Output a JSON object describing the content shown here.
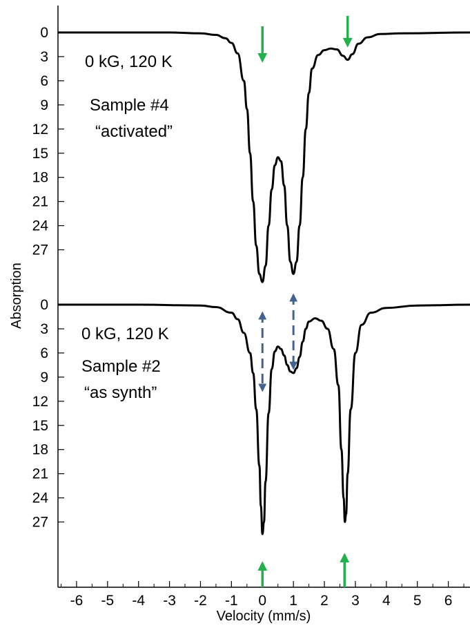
{
  "chart_data": {
    "type": "line",
    "xlabel": "Velocity (mm/s)",
    "ylabel": "Absorption",
    "xlim": [
      -6.6,
      6.7
    ],
    "x_ticks": [
      -6,
      -5,
      -4,
      -3,
      -2,
      -1,
      0,
      1,
      2,
      3,
      4,
      5,
      6
    ],
    "upper_panel_y_ticks": [
      0,
      3,
      6,
      9,
      12,
      15,
      18,
      21,
      24,
      27
    ],
    "lower_panel_y_ticks": [
      0,
      3,
      6,
      9,
      12,
      15,
      18,
      21,
      24,
      27
    ],
    "grid": false,
    "series": [
      {
        "panel": "upper",
        "annotation_lines": [
          "0 kG, 120 K",
          "Sample #4",
          "“activated”"
        ],
        "color": "#000000",
        "points": [
          [
            -6.6,
            0.0
          ],
          [
            -5.0,
            0.0
          ],
          [
            -3.0,
            0.0
          ],
          [
            -2.0,
            0.1
          ],
          [
            -1.5,
            0.3
          ],
          [
            -1.2,
            0.7
          ],
          [
            -1.0,
            1.3
          ],
          [
            -0.8,
            2.6
          ],
          [
            -0.6,
            6.0
          ],
          [
            -0.5,
            9.5
          ],
          [
            -0.4,
            15.0
          ],
          [
            -0.3,
            21.0
          ],
          [
            -0.2,
            26.5
          ],
          [
            -0.1,
            30.0
          ],
          [
            0.0,
            31.0
          ],
          [
            0.1,
            29.0
          ],
          [
            0.2,
            24.0
          ],
          [
            0.3,
            19.5
          ],
          [
            0.4,
            16.5
          ],
          [
            0.5,
            15.5
          ],
          [
            0.6,
            16.0
          ],
          [
            0.7,
            19.0
          ],
          [
            0.8,
            24.0
          ],
          [
            0.9,
            28.5
          ],
          [
            1.0,
            30.0
          ],
          [
            1.1,
            28.5
          ],
          [
            1.2,
            24.0
          ],
          [
            1.3,
            18.0
          ],
          [
            1.4,
            12.0
          ],
          [
            1.5,
            7.5
          ],
          [
            1.6,
            4.5
          ],
          [
            1.8,
            2.8
          ],
          [
            2.0,
            2.2
          ],
          [
            2.2,
            2.0
          ],
          [
            2.4,
            2.1
          ],
          [
            2.6,
            2.9
          ],
          [
            2.75,
            3.4
          ],
          [
            2.9,
            2.7
          ],
          [
            3.1,
            1.4
          ],
          [
            3.4,
            0.6
          ],
          [
            3.8,
            0.2
          ],
          [
            4.5,
            0.1
          ],
          [
            6.7,
            0.0
          ]
        ]
      },
      {
        "panel": "lower",
        "annotation_lines": [
          "0 kG, 120 K",
          "Sample #2",
          "“as synth”"
        ],
        "color": "#000000",
        "points": [
          [
            -6.6,
            0.0
          ],
          [
            -4.0,
            0.0
          ],
          [
            -2.0,
            0.1
          ],
          [
            -1.5,
            0.3
          ],
          [
            -1.0,
            1.0
          ],
          [
            -0.8,
            1.8
          ],
          [
            -0.6,
            3.5
          ],
          [
            -0.4,
            6.0
          ],
          [
            -0.3,
            8.5
          ],
          [
            -0.2,
            13.0
          ],
          [
            -0.1,
            20.0
          ],
          [
            -0.05,
            25.0
          ],
          [
            0.0,
            28.5
          ],
          [
            0.05,
            27.0
          ],
          [
            0.1,
            22.0
          ],
          [
            0.2,
            13.5
          ],
          [
            0.3,
            8.0
          ],
          [
            0.4,
            5.8
          ],
          [
            0.5,
            5.2
          ],
          [
            0.6,
            5.5
          ],
          [
            0.7,
            6.3
          ],
          [
            0.8,
            7.5
          ],
          [
            0.9,
            8.3
          ],
          [
            1.0,
            8.5
          ],
          [
            1.1,
            7.9
          ],
          [
            1.2,
            6.5
          ],
          [
            1.3,
            4.6
          ],
          [
            1.4,
            3.0
          ],
          [
            1.5,
            2.1
          ],
          [
            1.7,
            1.7
          ],
          [
            1.9,
            2.0
          ],
          [
            2.1,
            3.0
          ],
          [
            2.3,
            5.5
          ],
          [
            2.45,
            10.0
          ],
          [
            2.55,
            18.0
          ],
          [
            2.62,
            24.0
          ],
          [
            2.66,
            27.0
          ],
          [
            2.7,
            26.0
          ],
          [
            2.75,
            21.0
          ],
          [
            2.85,
            13.0
          ],
          [
            3.0,
            6.0
          ],
          [
            3.2,
            2.5
          ],
          [
            3.5,
            1.0
          ],
          [
            4.0,
            0.4
          ],
          [
            5.0,
            0.1
          ],
          [
            6.7,
            0.0
          ]
        ]
      }
    ],
    "annotations": [
      {
        "label": "green arrow pointing down",
        "x": 0.0,
        "panel": "upper"
      },
      {
        "label": "green arrow pointing down",
        "x": 2.75,
        "panel": "upper"
      },
      {
        "label": "green arrow pointing up",
        "x": 0.0,
        "panel": "lower"
      },
      {
        "label": "green arrow pointing up",
        "x": 2.65,
        "panel": "lower"
      },
      {
        "label": "blue dashed double arrow",
        "x": 0.0,
        "from_y_lower": 0.0,
        "to_y_lower": 10.0
      },
      {
        "label": "blue dashed double arrow",
        "x": 1.0,
        "from_y_lower": -1.0,
        "to_y_lower": 7.5
      }
    ],
    "colors": {
      "curve": "#000000",
      "green_arrow": "#22b14c",
      "blue_arrow": "#44628f"
    }
  }
}
